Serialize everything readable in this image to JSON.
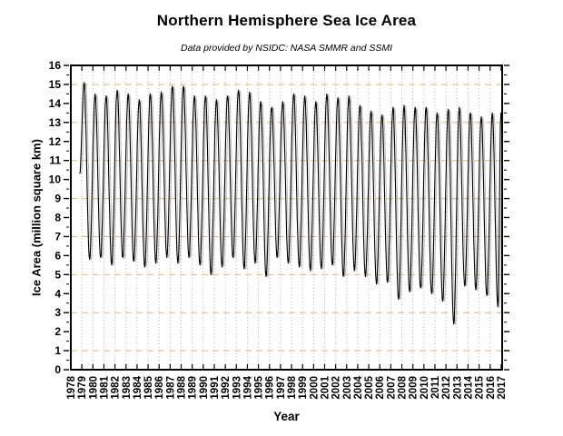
{
  "chart_data": {
    "type": "line",
    "title": "Northern Hemisphere Sea Ice Area",
    "subtitle": "Data provided by NSIDC: NASA SMMR and SSMI",
    "xlabel": "Year",
    "ylabel": "Ice Area (million square km)",
    "xlim": [
      1978,
      2017.09
    ],
    "ylim": [
      0,
      16
    ],
    "x_ticks": [
      1978,
      1979,
      1980,
      1981,
      1982,
      1983,
      1984,
      1985,
      1986,
      1987,
      1988,
      1989,
      1990,
      1991,
      1992,
      1993,
      1994,
      1995,
      1996,
      1997,
      1998,
      1999,
      2000,
      2001,
      2002,
      2003,
      2004,
      2005,
      2006,
      2007,
      2008,
      2009,
      2010,
      2011,
      2012,
      2013,
      2014,
      2015,
      2016,
      2017
    ],
    "y_ticks": [
      0,
      1,
      2,
      3,
      4,
      5,
      6,
      7,
      8,
      9,
      10,
      11,
      12,
      13,
      14,
      15,
      16
    ],
    "y_minor_step": 0.5,
    "grid": {
      "h_lines_at": [
        1,
        3,
        5,
        7,
        9,
        11,
        13,
        15
      ],
      "h_color": "#d5bc7e",
      "v_color": "#9fb3a2",
      "h_style": "dashed",
      "v_style": "dotted"
    },
    "line_color": "#000000",
    "series": [
      {
        "name": "Northern Hemisphere sea ice area (daily)",
        "season_phase": {
          "max_at": 0.2,
          "min_at": 0.7
        },
        "start": {
          "x": 1978.8,
          "value": 10.3
        },
        "end": {
          "x": 2017.09,
          "value": 13.5
        },
        "annual_extremes": [
          {
            "year": 1979,
            "max": 15.1,
            "min": 5.8
          },
          {
            "year": 1980,
            "max": 14.5,
            "min": 5.9
          },
          {
            "year": 1981,
            "max": 14.4,
            "min": 5.5
          },
          {
            "year": 1982,
            "max": 14.7,
            "min": 5.9
          },
          {
            "year": 1983,
            "max": 14.5,
            "min": 5.7
          },
          {
            "year": 1984,
            "max": 14.2,
            "min": 5.4
          },
          {
            "year": 1985,
            "max": 14.5,
            "min": 5.6
          },
          {
            "year": 1986,
            "max": 14.6,
            "min": 5.9
          },
          {
            "year": 1987,
            "max": 14.9,
            "min": 5.6
          },
          {
            "year": 1988,
            "max": 14.9,
            "min": 5.9
          },
          {
            "year": 1989,
            "max": 14.4,
            "min": 5.5
          },
          {
            "year": 1990,
            "max": 14.4,
            "min": 5.0
          },
          {
            "year": 1991,
            "max": 14.2,
            "min": 5.4
          },
          {
            "year": 1992,
            "max": 14.4,
            "min": 5.9
          },
          {
            "year": 1993,
            "max": 14.7,
            "min": 5.3
          },
          {
            "year": 1994,
            "max": 14.6,
            "min": 5.6
          },
          {
            "year": 1995,
            "max": 14.1,
            "min": 4.9
          },
          {
            "year": 1996,
            "max": 13.8,
            "min": 5.9
          },
          {
            "year": 1997,
            "max": 14.1,
            "min": 5.6
          },
          {
            "year": 1998,
            "max": 14.5,
            "min": 5.4
          },
          {
            "year": 1999,
            "max": 14.4,
            "min": 5.2
          },
          {
            "year": 2000,
            "max": 14.1,
            "min": 5.3
          },
          {
            "year": 2001,
            "max": 14.5,
            "min": 5.5
          },
          {
            "year": 2002,
            "max": 14.3,
            "min": 4.9
          },
          {
            "year": 2003,
            "max": 14.4,
            "min": 5.2
          },
          {
            "year": 2004,
            "max": 13.9,
            "min": 4.9
          },
          {
            "year": 2005,
            "max": 13.6,
            "min": 4.5
          },
          {
            "year": 2006,
            "max": 13.4,
            "min": 4.6
          },
          {
            "year": 2007,
            "max": 13.8,
            "min": 3.7
          },
          {
            "year": 2008,
            "max": 13.9,
            "min": 4.1
          },
          {
            "year": 2009,
            "max": 13.8,
            "min": 4.3
          },
          {
            "year": 2010,
            "max": 13.8,
            "min": 4.0
          },
          {
            "year": 2011,
            "max": 13.5,
            "min": 3.6
          },
          {
            "year": 2012,
            "max": 13.7,
            "min": 2.4
          },
          {
            "year": 2013,
            "max": 13.8,
            "min": 4.4
          },
          {
            "year": 2014,
            "max": 13.5,
            "min": 4.2
          },
          {
            "year": 2015,
            "max": 13.3,
            "min": 3.9
          },
          {
            "year": 2016,
            "max": 13.5,
            "min": 3.3
          },
          {
            "year": 2017,
            "max": 13.5,
            "min": null,
            "max_x": 2016.98
          }
        ]
      }
    ]
  }
}
